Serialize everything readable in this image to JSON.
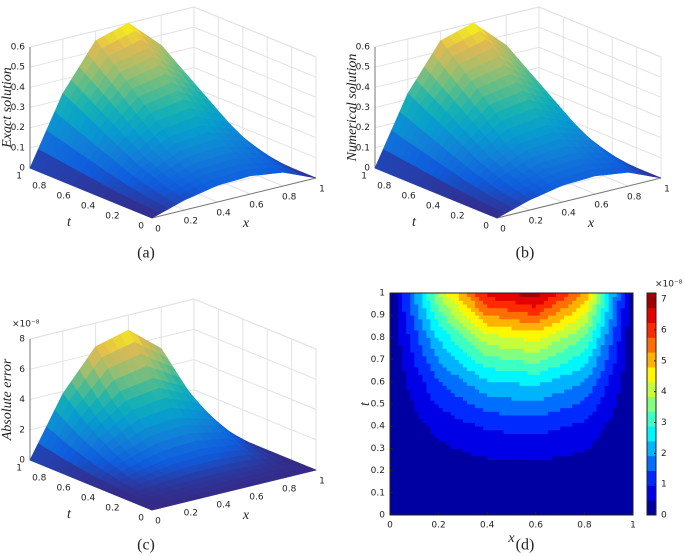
{
  "chart_data": [
    {
      "type": "surface3d",
      "zlabel": "Exact solution",
      "xlabel": "x",
      "ylabel": "t",
      "caption": "(a)",
      "colormap": "parula",
      "x": [
        0,
        0.2,
        0.4,
        0.6,
        0.8,
        1
      ],
      "y": [
        0,
        0.2,
        0.4,
        0.6,
        0.8,
        1
      ],
      "z": [
        [
          0,
          0.05,
          0.083,
          0.09,
          0.068,
          0
        ],
        [
          0,
          0.083,
          0.138,
          0.15,
          0.113,
          0
        ],
        [
          0,
          0.132,
          0.221,
          0.24,
          0.18,
          0
        ],
        [
          0,
          0.198,
          0.331,
          0.36,
          0.27,
          0
        ],
        [
          0,
          0.264,
          0.442,
          0.48,
          0.36,
          0
        ],
        [
          0,
          0.33,
          0.552,
          0.6,
          0.45,
          0
        ]
      ],
      "xlim": [
        0,
        1
      ],
      "ylim": [
        0,
        1
      ],
      "zlim": [
        0,
        0.6
      ],
      "xticks": [
        0,
        0.2,
        0.4,
        0.6,
        0.8,
        1
      ],
      "yticks": [
        0,
        0.2,
        0.4,
        0.6,
        0.8,
        1
      ],
      "zticks": [
        0,
        0.1,
        0.2,
        0.3,
        0.4,
        0.5,
        0.6
      ]
    },
    {
      "type": "surface3d",
      "zlabel": "Numerical solution",
      "xlabel": "x",
      "ylabel": "t",
      "caption": "(b)",
      "colormap": "parula",
      "x": [
        0,
        0.2,
        0.4,
        0.6,
        0.8,
        1
      ],
      "y": [
        0,
        0.2,
        0.4,
        0.6,
        0.8,
        1
      ],
      "z": [
        [
          0,
          0.05,
          0.083,
          0.09,
          0.068,
          0
        ],
        [
          0,
          0.083,
          0.138,
          0.15,
          0.113,
          0
        ],
        [
          0,
          0.132,
          0.221,
          0.24,
          0.18,
          0
        ],
        [
          0,
          0.198,
          0.331,
          0.36,
          0.27,
          0
        ],
        [
          0,
          0.264,
          0.442,
          0.48,
          0.36,
          0
        ],
        [
          0,
          0.33,
          0.552,
          0.6,
          0.45,
          0
        ]
      ],
      "xlim": [
        0,
        1
      ],
      "ylim": [
        0,
        1
      ],
      "zlim": [
        0,
        0.6
      ],
      "xticks": [
        0,
        0.2,
        0.4,
        0.6,
        0.8,
        1
      ],
      "yticks": [
        0,
        0.2,
        0.4,
        0.6,
        0.8,
        1
      ],
      "zticks": [
        0,
        0.1,
        0.2,
        0.3,
        0.4,
        0.5,
        0.6
      ]
    },
    {
      "type": "surface3d",
      "zlabel": "Absolute error",
      "xlabel": "x",
      "ylabel": "t",
      "caption": "(c)",
      "colormap": "parula",
      "exponent": "×10⁻⁸",
      "x": [
        0,
        0.2,
        0.4,
        0.6,
        0.8,
        1
      ],
      "y": [
        0,
        0.2,
        0.4,
        0.6,
        0.8,
        1
      ],
      "z": [
        [
          0,
          0,
          0,
          0,
          0,
          0
        ],
        [
          0,
          0.154,
          0.258,
          0.28,
          0.21,
          0
        ],
        [
          0,
          0.616,
          1.03,
          1.12,
          0.84,
          0
        ],
        [
          0,
          1.386,
          2.318,
          2.52,
          1.89,
          0
        ],
        [
          0,
          2.464,
          4.122,
          4.48,
          3.36,
          0
        ],
        [
          0,
          3.85,
          6.44,
          7,
          5.25,
          0
        ]
      ],
      "xlim": [
        0,
        1
      ],
      "ylim": [
        0,
        1
      ],
      "zlim": [
        0,
        8
      ],
      "xticks": [
        0,
        0.2,
        0.4,
        0.6,
        0.8,
        1
      ],
      "yticks": [
        0,
        0.2,
        0.4,
        0.6,
        0.8,
        1
      ],
      "zticks": [
        0,
        2,
        4,
        6,
        8
      ]
    },
    {
      "type": "contour",
      "xlabel": "x",
      "ylabel": "t",
      "caption": "(d)",
      "colormap": "jet",
      "exponent": "×10⁻⁸",
      "x": [
        0,
        0.2,
        0.4,
        0.6,
        0.8,
        1
      ],
      "y": [
        0,
        0.2,
        0.4,
        0.6,
        0.8,
        1
      ],
      "z": [
        [
          0,
          0,
          0,
          0,
          0,
          0
        ],
        [
          0,
          0.154,
          0.258,
          0.28,
          0.21,
          0
        ],
        [
          0,
          0.616,
          1.03,
          1.12,
          0.84,
          0
        ],
        [
          0,
          1.386,
          2.318,
          2.52,
          1.89,
          0
        ],
        [
          0,
          2.464,
          4.122,
          4.48,
          3.36,
          0
        ],
        [
          0,
          3.85,
          6.44,
          7,
          5.25,
          0
        ]
      ],
      "xlim": [
        0,
        1
      ],
      "ylim": [
        0,
        1
      ],
      "clim": [
        0,
        7.2
      ],
      "xticks": [
        0,
        0.2,
        0.4,
        0.6,
        0.8,
        1
      ],
      "yticks": [
        0,
        0.1,
        0.2,
        0.3,
        0.4,
        0.5,
        0.6,
        0.7,
        0.8,
        0.9,
        1
      ],
      "cticks": [
        0,
        1,
        2,
        3,
        4,
        5,
        6,
        7
      ]
    }
  ]
}
